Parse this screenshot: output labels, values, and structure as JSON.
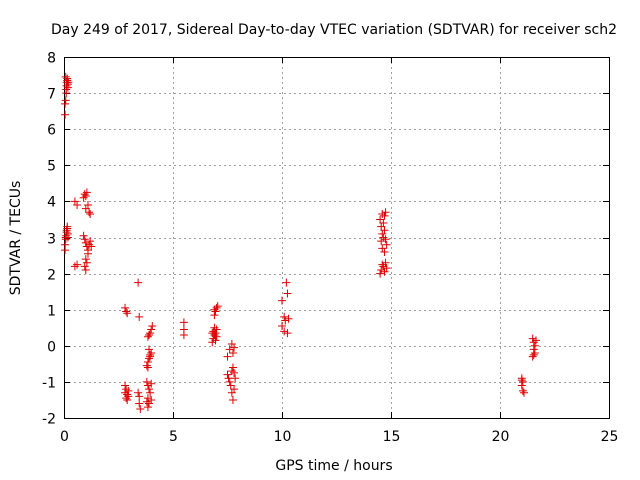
{
  "chart_data": {
    "type": "scatter",
    "title": "Day 249 of 2017, Sidereal Day-to-day VTEC variation (SDTVAR) for receiver sch2",
    "xlabel": "GPS time / hours",
    "ylabel": "SDTVAR / TECUs",
    "xlim": [
      0,
      25
    ],
    "ylim": [
      -2,
      8
    ],
    "xticks": [
      0,
      5,
      10,
      15,
      20,
      25
    ],
    "yticks": [
      -2,
      -1,
      0,
      1,
      2,
      3,
      4,
      5,
      6,
      7,
      8
    ],
    "grid": true,
    "marker": "+",
    "color": "#e00000",
    "series": [
      {
        "points": [
          [
            0.05,
            6.4
          ],
          [
            0.05,
            6.7
          ],
          [
            0.08,
            6.8
          ],
          [
            0.1,
            7.0
          ],
          [
            0.1,
            7.1
          ],
          [
            0.12,
            7.2
          ],
          [
            0.12,
            7.3
          ],
          [
            0.15,
            7.35
          ],
          [
            0.15,
            7.4
          ],
          [
            0.08,
            7.45
          ],
          [
            0.18,
            7.25
          ],
          [
            0.18,
            7.15
          ],
          [
            0.2,
            7.3
          ],
          [
            0.05,
            2.65
          ],
          [
            0.05,
            2.8
          ],
          [
            0.08,
            2.95
          ],
          [
            0.08,
            3.0
          ],
          [
            0.1,
            3.05
          ],
          [
            0.12,
            3.15
          ],
          [
            0.12,
            3.2
          ],
          [
            0.15,
            3.25
          ],
          [
            0.15,
            3.3
          ],
          [
            0.18,
            3.1
          ],
          [
            0.18,
            3.0
          ],
          [
            0.5,
            2.2
          ],
          [
            0.6,
            2.25
          ],
          [
            0.5,
            4.0
          ],
          [
            0.6,
            3.9
          ],
          [
            0.9,
            4.1
          ],
          [
            0.95,
            4.2
          ],
          [
            1.0,
            4.15
          ],
          [
            1.05,
            4.25
          ],
          [
            1.1,
            3.9
          ],
          [
            1.0,
            3.8
          ],
          [
            1.15,
            3.7
          ],
          [
            1.2,
            3.65
          ],
          [
            0.9,
            3.05
          ],
          [
            0.95,
            2.95
          ],
          [
            1.0,
            2.85
          ],
          [
            1.05,
            2.75
          ],
          [
            1.1,
            2.65
          ],
          [
            1.15,
            2.8
          ],
          [
            1.2,
            2.9
          ],
          [
            1.25,
            2.75
          ],
          [
            1.0,
            2.4
          ],
          [
            1.05,
            2.3
          ],
          [
            0.95,
            2.2
          ],
          [
            1.0,
            2.1
          ],
          [
            1.1,
            2.55
          ],
          [
            2.8,
            1.05
          ],
          [
            2.85,
            0.95
          ],
          [
            2.9,
            0.9
          ],
          [
            2.8,
            -1.1
          ],
          [
            2.85,
            -1.2
          ],
          [
            2.8,
            -1.3
          ],
          [
            2.9,
            -1.35
          ],
          [
            2.85,
            -1.45
          ],
          [
            2.9,
            -1.5
          ],
          [
            2.95,
            -1.4
          ],
          [
            2.95,
            -1.25
          ],
          [
            3.4,
            1.75
          ],
          [
            3.45,
            0.8
          ],
          [
            3.4,
            -1.3
          ],
          [
            3.45,
            -1.4
          ],
          [
            3.45,
            -1.6
          ],
          [
            3.5,
            -1.75
          ],
          [
            3.8,
            -0.55
          ],
          [
            3.85,
            -0.45
          ],
          [
            3.9,
            -0.35
          ],
          [
            3.95,
            -0.25
          ],
          [
            4.0,
            -0.2
          ],
          [
            3.9,
            -0.1
          ],
          [
            3.95,
            -0.3
          ],
          [
            3.85,
            -0.6
          ],
          [
            3.85,
            0.25
          ],
          [
            3.9,
            0.3
          ],
          [
            3.95,
            0.35
          ],
          [
            4.0,
            0.45
          ],
          [
            4.05,
            0.55
          ],
          [
            3.8,
            -1.0
          ],
          [
            3.85,
            -1.1
          ],
          [
            3.9,
            -1.2
          ],
          [
            3.95,
            -1.3
          ],
          [
            4.0,
            -1.05
          ],
          [
            3.85,
            -1.45
          ],
          [
            3.8,
            -1.55
          ],
          [
            3.9,
            -1.6
          ],
          [
            3.85,
            -1.7
          ],
          [
            4.0,
            -1.5
          ],
          [
            5.5,
            0.65
          ],
          [
            5.5,
            0.45
          ],
          [
            5.5,
            0.3
          ],
          [
            6.8,
            0.1
          ],
          [
            6.85,
            0.2
          ],
          [
            6.9,
            0.3
          ],
          [
            6.85,
            0.4
          ],
          [
            6.9,
            0.5
          ],
          [
            6.95,
            0.35
          ],
          [
            7.0,
            0.25
          ],
          [
            6.95,
            0.15
          ],
          [
            7.0,
            0.45
          ],
          [
            6.8,
            0.35
          ],
          [
            6.9,
            0.85
          ],
          [
            6.95,
            0.95
          ],
          [
            7.0,
            1.05
          ],
          [
            7.05,
            1.1
          ],
          [
            6.9,
            1.0
          ],
          [
            7.5,
            -0.3
          ],
          [
            7.6,
            -0.1
          ],
          [
            7.7,
            0.05
          ],
          [
            7.75,
            -0.2
          ],
          [
            7.8,
            -0.05
          ],
          [
            7.5,
            -0.8
          ],
          [
            7.55,
            -0.9
          ],
          [
            7.6,
            -1.0
          ],
          [
            7.65,
            -1.1
          ],
          [
            7.7,
            -0.7
          ],
          [
            7.75,
            -0.6
          ],
          [
            7.8,
            -0.75
          ],
          [
            7.7,
            -1.3
          ],
          [
            7.75,
            -1.5
          ],
          [
            7.8,
            -1.2
          ],
          [
            7.85,
            -0.9
          ],
          [
            10.0,
            1.25
          ],
          [
            10.1,
            0.8
          ],
          [
            10.15,
            0.7
          ],
          [
            10.2,
            1.75
          ],
          [
            10.25,
            1.45
          ],
          [
            10.3,
            0.75
          ],
          [
            10.1,
            0.4
          ],
          [
            10.25,
            0.35
          ],
          [
            10.0,
            0.55
          ],
          [
            14.5,
            3.5
          ],
          [
            14.55,
            3.3
          ],
          [
            14.6,
            3.1
          ],
          [
            14.55,
            2.9
          ],
          [
            14.6,
            2.7
          ],
          [
            14.65,
            3.4
          ],
          [
            14.7,
            3.6
          ],
          [
            14.75,
            3.7
          ],
          [
            14.7,
            3.2
          ],
          [
            14.75,
            2.95
          ],
          [
            14.8,
            2.8
          ],
          [
            14.6,
            3.65
          ],
          [
            14.65,
            3.0
          ],
          [
            14.7,
            2.6
          ],
          [
            14.5,
            2.0
          ],
          [
            14.55,
            2.1
          ],
          [
            14.6,
            2.25
          ],
          [
            14.65,
            2.2
          ],
          [
            14.7,
            2.05
          ],
          [
            14.75,
            2.3
          ],
          [
            14.8,
            2.15
          ],
          [
            21.0,
            -0.9
          ],
          [
            21.05,
            -1.0
          ],
          [
            21.0,
            -1.1
          ],
          [
            21.05,
            -1.25
          ],
          [
            21.1,
            -1.3
          ],
          [
            21.0,
            -0.95
          ],
          [
            21.5,
            0.2
          ],
          [
            21.55,
            0.1
          ],
          [
            21.6,
            0.0
          ],
          [
            21.55,
            -0.1
          ],
          [
            21.6,
            -0.2
          ],
          [
            21.5,
            -0.3
          ],
          [
            21.65,
            0.15
          ],
          [
            21.55,
            -0.25
          ]
        ]
      }
    ]
  }
}
